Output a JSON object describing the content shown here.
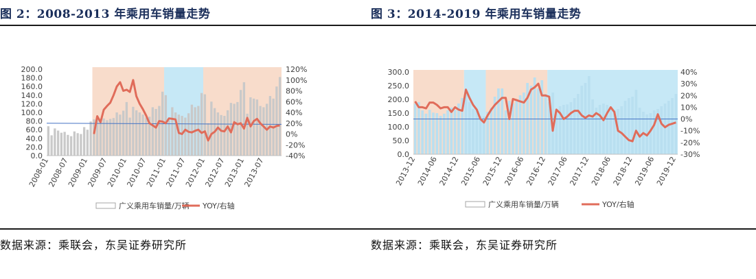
{
  "panels": [
    {
      "title": "图 2：2008-2013 年乘用车销量走势",
      "source": "数据来源：乘联会，东吴证券研究所",
      "chart_data": {
        "type": "bar",
        "x_tick_labels": [
          "2008-01",
          "2008-07",
          "2009-01",
          "2009-07",
          "2010-01",
          "2010-07",
          "2011-01",
          "2011-07",
          "2012-01",
          "2012-07",
          "2013-01",
          "2013-07"
        ],
        "left_axis": {
          "ylim": [
            0,
            200
          ],
          "ticks": [
            "0.0",
            "20.0",
            "40.0",
            "60.0",
            "80.0",
            "100.0",
            "120.0",
            "140.0",
            "160.0",
            "180.0",
            "200.0"
          ]
        },
        "right_axis": {
          "ylim": [
            -40,
            120
          ],
          "ticks": [
            "-40%",
            "-20%",
            "0%",
            "20%",
            "40%",
            "60%",
            "80%",
            "100%",
            "120%"
          ]
        },
        "legend_position": "bottom",
        "shaded_regions": [
          {
            "from_index": 14,
            "to_index": 35,
            "color": "#f8dccb"
          },
          {
            "from_index": 36,
            "to_index": 47,
            "color": "#c6e8f6"
          },
          {
            "from_index": 48,
            "to_index": 71,
            "color": "#f8dccb"
          }
        ],
        "reference_line": {
          "axis": "right",
          "from": 20,
          "to": 18,
          "color": "#4472c4"
        },
        "series": [
          {
            "name": "广义乘用车销量/万辆",
            "type": "bar",
            "axis": "left",
            "color": "#c9c9c9",
            "values": [
              68,
              47,
              63,
              58,
              53,
              55,
              48,
              45,
              56,
              52,
              50,
              66,
              60,
              79,
              84,
              85,
              83,
              86,
              82,
              85,
              87,
              100,
              95,
              104,
              124,
              88,
              113,
              105,
              100,
              95,
              88,
              90,
              112,
              108,
              115,
              148,
              140,
              82,
              112,
              100,
              95,
              92,
              88,
              98,
              118,
              112,
              115,
              145,
              142,
              75,
              125,
              110,
              100,
              94,
              92,
              105,
              122,
              120,
              124,
              152,
              170,
              97,
              135,
              132,
              130,
              115,
              112,
              120,
              138,
              132,
              160,
              182
            ]
          },
          {
            "name": "YOY/右轴",
            "type": "line",
            "axis": "right",
            "color": "#e06c5a",
            "values": [
              null,
              null,
              null,
              null,
              null,
              null,
              null,
              null,
              null,
              null,
              null,
              null,
              null,
              null,
              0,
              33,
              22,
              45,
              52,
              58,
              72,
              88,
              96,
              80,
              82,
              78,
              100,
              70,
              56,
              46,
              34,
              20,
              16,
              12,
              24,
              23,
              20,
              29,
              28,
              27,
              2,
              0,
              8,
              4,
              3,
              6,
              8,
              2,
              5,
              -12,
              0,
              4,
              12,
              6,
              5,
              14,
              3,
              22,
              18,
              20,
              10,
              30,
              14,
              24,
              28,
              20,
              14,
              8,
              14,
              12,
              15,
              16
            ]
          }
        ]
      }
    },
    {
      "title": "图 3：2014-2019 年乘用车销量走势",
      "source": "数据来源：乘联会，东吴证券研究所",
      "chart_data": {
        "type": "bar",
        "x_tick_labels": [
          "2013-12",
          "2014-06",
          "2014-12",
          "2015-06",
          "2015-12",
          "2016-06",
          "2016-12",
          "2017-06",
          "2017-12",
          "2018-06",
          "2018-12",
          "2019-06",
          "2019-12"
        ],
        "left_axis": {
          "ylim": [
            0,
            300
          ],
          "ticks": [
            "0.0",
            "50.0",
            "100.0",
            "150.0",
            "200.0",
            "250.0",
            "300.0"
          ]
        },
        "right_axis": {
          "ylim": [
            -30,
            40
          ],
          "ticks": [
            "-30%",
            "-20%",
            "-10%",
            "0%",
            "10%",
            "20%",
            "30%",
            "40%"
          ]
        },
        "legend_position": "bottom",
        "shaded_regions": [
          {
            "from_index": 0,
            "to_index": 13,
            "color": "#f8dccb"
          },
          {
            "from_index": 14,
            "to_index": 19,
            "color": "#c6e8f6"
          },
          {
            "from_index": 20,
            "to_index": 36,
            "color": "#f8dccb"
          },
          {
            "from_index": 37,
            "to_index": 72,
            "color": "#c6e8f6"
          }
        ],
        "reference_line": {
          "axis": "right",
          "from": 0,
          "to": 0,
          "color": "#4472c4"
        },
        "series": [
          {
            "name": "广义乘用车销量/万辆",
            "type": "bar",
            "axis": "left",
            "color": "#b9dff0",
            "values": [
              185,
              190,
              160,
              148,
              162,
              152,
              150,
              140,
              148,
              160,
              170,
              162,
              185,
              205,
              230,
              190,
              165,
              158,
              140,
              138,
              155,
              170,
              210,
              240,
              240,
              160,
              195,
              185,
              200,
              215,
              225,
              260,
              250,
              280,
              240,
              270,
              220,
              190,
              225,
              160,
              175,
              180,
              182,
              190,
              205,
              220,
              250,
              260,
              285,
              200,
              170,
              180,
              185,
              180,
              170,
              160,
              165,
              175,
              195,
              205,
              210,
              235,
              170,
              155,
              145,
              150,
              160,
              165,
              175,
              185,
              195,
              205,
              220
            ]
          },
          {
            "name": "YOY/右轴",
            "type": "line",
            "axis": "right",
            "color": "#e06c5a",
            "values": [
              15,
              10,
              10,
              9,
              14,
              14,
              12,
              9,
              10,
              10,
              6,
              10,
              8,
              7,
              25,
              18,
              12,
              8,
              0,
              -3,
              3,
              8,
              12,
              15,
              18,
              18,
              0,
              17,
              16,
              15,
              14,
              18,
              25,
              27,
              30,
              20,
              20,
              19,
              -10,
              8,
              5,
              0,
              2,
              5,
              7,
              7,
              3,
              1,
              3,
              2,
              5,
              3,
              -1,
              5,
              10,
              6,
              -10,
              -12,
              -15,
              -18,
              -19,
              -10,
              -15,
              -12,
              -14,
              -10,
              -5,
              4,
              -4,
              -7,
              -5,
              -4,
              -3
            ]
          }
        ]
      }
    }
  ]
}
